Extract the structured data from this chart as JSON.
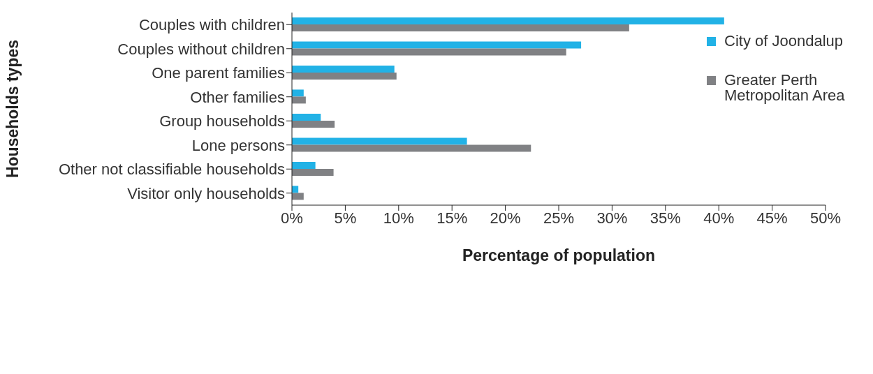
{
  "chart_data": {
    "type": "bar",
    "orientation": "horizontal",
    "xlabel": "Percentage of population",
    "ylabel": "Households types",
    "categories": [
      "Couples with children",
      "Couples without children",
      "One parent families",
      "Other families",
      "Group households",
      "Lone persons",
      "Other not classifiable households",
      "Visitor only households"
    ],
    "series": [
      {
        "name": "City of Joondalup",
        "color": "#22b2e6",
        "values": [
          40.5,
          27.1,
          9.6,
          1.1,
          2.7,
          16.4,
          2.2,
          0.6
        ]
      },
      {
        "name": "Greater Perth Metropolitan Area",
        "color": "#808184",
        "values": [
          31.6,
          25.7,
          9.8,
          1.3,
          4.0,
          22.4,
          3.9,
          1.1
        ]
      }
    ],
    "xlim": [
      0,
      50
    ],
    "xticks": [
      {
        "value": 0,
        "label": "0%"
      },
      {
        "value": 5,
        "label": "5%"
      },
      {
        "value": 10,
        "label": "10%"
      },
      {
        "value": 15,
        "label": "15%"
      },
      {
        "value": 20,
        "label": "20%"
      },
      {
        "value": 25,
        "label": "25%"
      },
      {
        "value": 30,
        "label": "30%"
      },
      {
        "value": 35,
        "label": "35%"
      },
      {
        "value": 40,
        "label": "40%"
      },
      {
        "value": 45,
        "label": "45%"
      },
      {
        "value": 50,
        "label": "50%"
      }
    ],
    "grid": false,
    "legend": "top right"
  }
}
